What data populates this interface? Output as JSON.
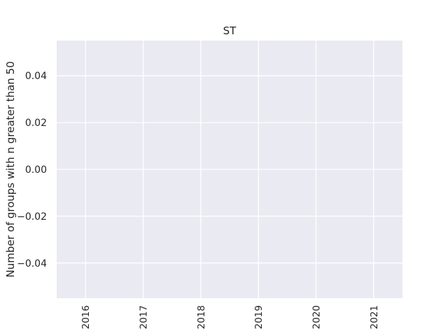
{
  "chart_data": {
    "type": "line",
    "title": "ST",
    "xlabel": "",
    "ylabel": "Number of groups with n greater than 50",
    "x_ticks": [
      "2016",
      "2017",
      "2018",
      "2019",
      "2020",
      "2021"
    ],
    "y_ticks": [
      "0.04",
      "0.02",
      "0.00",
      "−0.02",
      "−0.04"
    ],
    "y_tick_values": [
      0.04,
      0.02,
      0.0,
      -0.02,
      -0.04
    ],
    "x_tick_values": [
      2016,
      2017,
      2018,
      2019,
      2020,
      2021
    ],
    "xlim": [
      2015.5,
      2021.5
    ],
    "ylim": [
      -0.055,
      0.055
    ],
    "series": [],
    "grid": true,
    "x_tick_rotation": "vertical",
    "colors": {
      "plot_background": "#eaeaf2",
      "grid": "#ffffff",
      "text": "#262626"
    }
  }
}
